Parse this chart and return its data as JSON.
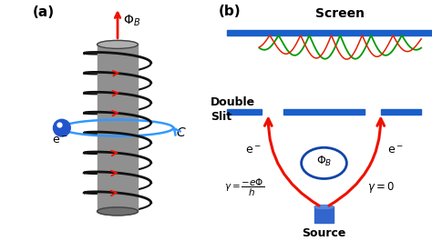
{
  "bg_color": "#ffffff",
  "label_a": "(a)",
  "label_b": "(b)",
  "cylinder_color": "#909090",
  "cylinder_light": "#b0b0b0",
  "cylinder_edge": "#555555",
  "coil_color": "#111111",
  "arrow_color": "#ee1100",
  "electron_color": "#2255cc",
  "orbit_color": "#3399ff",
  "screen_color": "#1a5fcc",
  "slit_color": "#1a5fcc",
  "source_color": "#3366cc",
  "phi_circle_color": "#1144aa",
  "wave_green": "#009900",
  "wave_red": "#dd2200",
  "phi_b_label": "$\\Phi_B$",
  "screen_label": "Screen",
  "double_slit_label": "Double\nSlit",
  "source_label": "Source",
  "gamma_left": "$\\gamma = \\dfrac{-e\\Phi}{h}$",
  "gamma_right": "$\\gamma = 0$",
  "e_left": "$\\mathrm{e}^-$",
  "e_right": "$\\mathrm{e}^-$",
  "e_orbit": "$\\mathrm{e}^-$",
  "c_label": "$C$",
  "phi_b_a_label": "$\\Phi_B$"
}
